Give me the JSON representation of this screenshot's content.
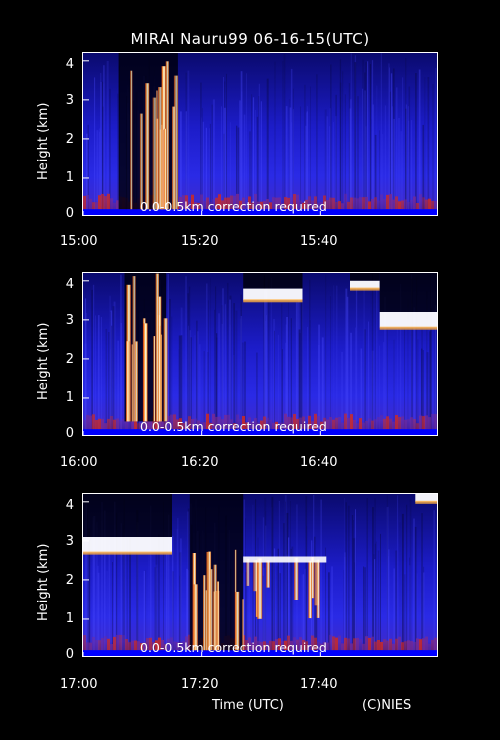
{
  "title": "MIRAI Nauru99 06-16-15(UTC)",
  "footer": {
    "xlabel": "Time (UTC)",
    "credit": "(C)NIES"
  },
  "chart_data": [
    {
      "type": "heatmap",
      "ylabel": "Height (km)",
      "yticks": [
        "0",
        "1",
        "2",
        "3",
        "4"
      ],
      "ylim": [
        0,
        4.2
      ],
      "xticks": [
        "15:00",
        "15:20",
        "15:40"
      ],
      "xlim_minutes": [
        0,
        60
      ],
      "annotation": "0.0-0.5km correction required",
      "cloud_features": [
        {
          "t_start": 6,
          "t_end": 16,
          "base_km": 0.2,
          "top_km": 4.0,
          "kind": "dense-column"
        }
      ]
    },
    {
      "type": "heatmap",
      "ylabel": "Height (km)",
      "yticks": [
        "0",
        "1",
        "2",
        "3",
        "4"
      ],
      "ylim": [
        0,
        4.2
      ],
      "xticks": [
        "16:00",
        "16:20",
        "16:40"
      ],
      "xlim_minutes": [
        0,
        60
      ],
      "annotation": "0.0-0.5km correction required",
      "cloud_features": [
        {
          "t_start": 7,
          "t_end": 14,
          "base_km": 0.4,
          "top_km": 4.2,
          "kind": "dense-column"
        },
        {
          "t_start": 27,
          "t_end": 37,
          "base_km": 3.5,
          "top_km": 3.8,
          "kind": "layer"
        },
        {
          "t_start": 45,
          "t_end": 50,
          "base_km": 3.8,
          "top_km": 4.0,
          "kind": "layer"
        },
        {
          "t_start": 50,
          "t_end": 60,
          "base_km": 2.8,
          "top_km": 3.2,
          "kind": "layer"
        }
      ]
    },
    {
      "type": "heatmap",
      "ylabel": "Height (km)",
      "yticks": [
        "0",
        "1",
        "2",
        "3",
        "4"
      ],
      "ylim": [
        0,
        4.2
      ],
      "xticks": [
        "17:00",
        "17:20",
        "17:40"
      ],
      "xlim_minutes": [
        0,
        60
      ],
      "annotation": "0.0-0.5km correction required",
      "cloud_features": [
        {
          "t_start": 0,
          "t_end": 15,
          "base_km": 2.7,
          "top_km": 3.1,
          "kind": "layer"
        },
        {
          "t_start": 18,
          "t_end": 27,
          "base_km": 0.2,
          "top_km": 2.8,
          "kind": "dense-column"
        },
        {
          "t_start": 27,
          "t_end": 41,
          "base_km": 1.0,
          "top_km": 2.6,
          "kind": "virga"
        },
        {
          "t_start": 56,
          "t_end": 60,
          "base_km": 4.0,
          "top_km": 4.2,
          "kind": "layer"
        }
      ]
    }
  ]
}
